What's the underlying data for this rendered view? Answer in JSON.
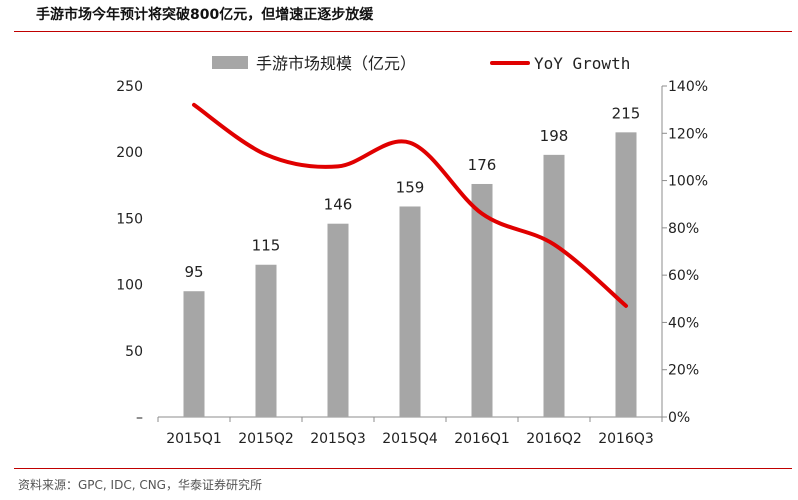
{
  "header": {
    "title": "手游市场今年预计将突破800亿元，但增速正逐步放缓"
  },
  "footer": {
    "source": "资料来源：GPC, IDC, CNG，华泰证券研究所"
  },
  "colors": {
    "bar": "#a6a6a6",
    "line": "#e00000",
    "rule": "#c00000"
  },
  "chart_data": {
    "type": "bar",
    "categories": [
      "2015Q1",
      "2015Q2",
      "2015Q3",
      "2015Q4",
      "2016Q1",
      "2016Q2",
      "2016Q3"
    ],
    "series": [
      {
        "name": "手游市场规模（亿元）",
        "type": "bar",
        "axis": "left",
        "values": [
          95,
          115,
          146,
          159,
          176,
          198,
          215
        ],
        "data_labels": [
          "95",
          "115",
          "146",
          "159",
          "176",
          "198",
          "215"
        ]
      },
      {
        "name": "YoY Growth",
        "type": "line",
        "axis": "right",
        "values": [
          1.32,
          1.11,
          1.06,
          1.16,
          0.86,
          0.73,
          0.47
        ]
      }
    ],
    "y_left": {
      "ylim": [
        0,
        250
      ],
      "ticks": [
        0,
        50,
        100,
        150,
        200,
        250
      ],
      "tick_labels": [
        "–",
        "50",
        "100",
        "150",
        "200",
        "250"
      ]
    },
    "y_right": {
      "ylim": [
        0,
        1.4
      ],
      "ticks": [
        0,
        0.2,
        0.4,
        0.6,
        0.8,
        1.0,
        1.2,
        1.4
      ],
      "tick_labels": [
        "0%",
        "20%",
        "40%",
        "60%",
        "80%",
        "100%",
        "120%",
        "140%"
      ]
    },
    "legend": "top",
    "grid": false
  }
}
